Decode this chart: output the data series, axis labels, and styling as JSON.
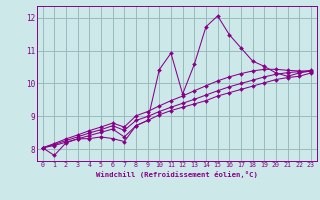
{
  "xlabel": "Windchill (Refroidissement éolien,°C)",
  "xlim": [
    -0.5,
    23.5
  ],
  "ylim": [
    7.65,
    12.35
  ],
  "yticks": [
    8,
    9,
    10,
    11,
    12
  ],
  "xticks": [
    0,
    1,
    2,
    3,
    4,
    5,
    6,
    7,
    8,
    9,
    10,
    11,
    12,
    13,
    14,
    15,
    16,
    17,
    18,
    19,
    20,
    21,
    22,
    23
  ],
  "bg_color": "#cce8e8",
  "line_color": "#880088",
  "grid_color": "#99bbbb",
  "series": [
    [
      8.05,
      7.82,
      8.2,
      8.32,
      8.33,
      8.38,
      8.33,
      8.24,
      8.72,
      8.88,
      10.42,
      10.92,
      9.68,
      10.58,
      11.72,
      12.05,
      11.48,
      11.08,
      10.68,
      10.52,
      10.32,
      10.22,
      10.32,
      10.38
    ],
    [
      8.05,
      8.12,
      8.22,
      8.32,
      8.42,
      8.52,
      8.62,
      8.38,
      8.72,
      8.88,
      9.05,
      9.18,
      9.28,
      9.38,
      9.48,
      9.62,
      9.72,
      9.82,
      9.92,
      10.02,
      10.12,
      10.18,
      10.22,
      10.32
    ],
    [
      8.05,
      8.15,
      8.27,
      8.38,
      8.5,
      8.6,
      8.72,
      8.58,
      8.88,
      9.0,
      9.15,
      9.28,
      9.4,
      9.52,
      9.65,
      9.78,
      9.9,
      10.0,
      10.1,
      10.2,
      10.28,
      10.33,
      10.36,
      10.4
    ],
    [
      8.05,
      8.18,
      8.32,
      8.44,
      8.57,
      8.68,
      8.8,
      8.68,
      9.02,
      9.15,
      9.32,
      9.48,
      9.62,
      9.78,
      9.93,
      10.08,
      10.2,
      10.3,
      10.38,
      10.43,
      10.43,
      10.4,
      10.38,
      10.36
    ]
  ]
}
